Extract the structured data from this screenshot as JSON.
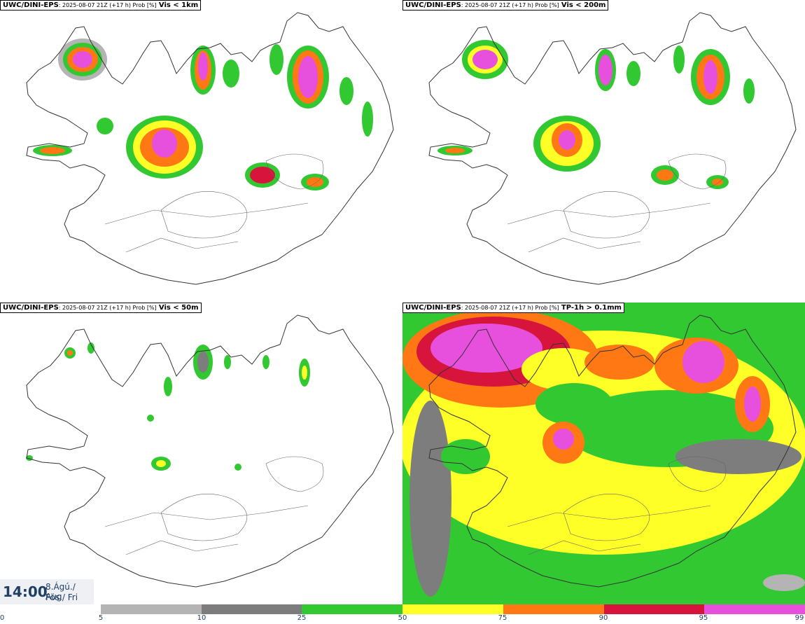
{
  "panels": [
    {
      "model": "UWC/DINI-EPS",
      "meta": ": 2025-08-07 21Z (+17 h) Prob [%]",
      "variable": "Vis < 1km"
    },
    {
      "model": "UWC/DINI-EPS",
      "meta": ": 2025-08-07 21Z (+17 h) Prob [%]",
      "variable": "Vis < 200m"
    },
    {
      "model": "UWC/DINI-EPS",
      "meta": ": 2025-08-07 21Z (+17 h) Prob [%]",
      "variable": "Vis < 50m"
    },
    {
      "model": "UWC/DINI-EPS",
      "meta": ": 2025-08-07 21Z (+17 h) Prob [%]",
      "variable": "TP-1h > 0.1mm"
    }
  ],
  "time": {
    "clock": "14:00",
    "date": "8.Ágú./ Aug",
    "weekday": "Fös./ Fri"
  },
  "legend": {
    "ticks": [
      "0",
      "5",
      "10",
      "25",
      "50",
      "75",
      "90",
      "95",
      "99"
    ],
    "colors": [
      "#b4b4b4",
      "#7d7d7d",
      "#32c832",
      "#ffff28",
      "#ff7814",
      "#d7143c",
      "#e650dc"
    ]
  }
}
